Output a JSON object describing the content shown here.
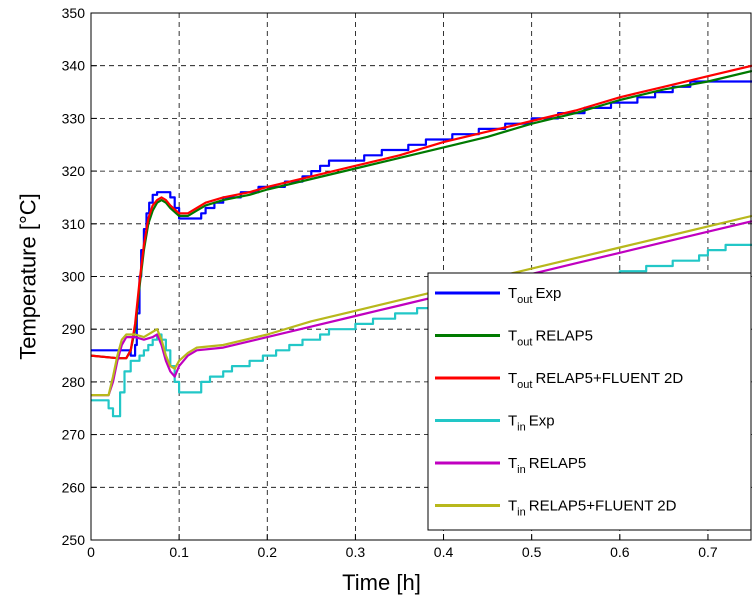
{
  "chart_data": {
    "type": "line",
    "xlabel": "Time [h]",
    "ylabel": "Temperature [°C]",
    "xlim": [
      0,
      0.75
    ],
    "ylim": [
      250,
      350
    ],
    "x_ticks": [
      0,
      0.1,
      0.2,
      0.3,
      0.4,
      0.5,
      0.6,
      0.7
    ],
    "x_tick_labels": [
      "0",
      "0.1",
      "0.2",
      "0.3",
      "0.4",
      "0.5",
      "0.6",
      "0.7"
    ],
    "y_ticks": [
      250,
      260,
      270,
      280,
      290,
      300,
      310,
      320,
      330,
      340,
      350
    ],
    "y_tick_labels": [
      "250",
      "260",
      "270",
      "280",
      "290",
      "300",
      "310",
      "320",
      "330",
      "340",
      "350"
    ],
    "grid": true,
    "legend_position": "bottom-right",
    "series": [
      {
        "key": "tout-exp",
        "name_main": "T",
        "name_sub": "out",
        "name_rest": "Exp",
        "color": "#0000ff",
        "step": true,
        "points": [
          [
            0,
            286
          ],
          [
            0.04,
            286
          ],
          [
            0.045,
            285
          ],
          [
            0.05,
            287
          ],
          [
            0.052,
            293
          ],
          [
            0.055,
            300
          ],
          [
            0.057,
            305
          ],
          [
            0.06,
            309
          ],
          [
            0.063,
            312
          ],
          [
            0.066,
            314
          ],
          [
            0.07,
            315.5
          ],
          [
            0.075,
            316
          ],
          [
            0.085,
            316
          ],
          [
            0.09,
            315
          ],
          [
            0.095,
            313
          ],
          [
            0.1,
            311
          ],
          [
            0.12,
            311
          ],
          [
            0.125,
            312
          ],
          [
            0.13,
            313
          ],
          [
            0.14,
            314
          ],
          [
            0.15,
            315
          ],
          [
            0.165,
            315
          ],
          [
            0.17,
            316
          ],
          [
            0.18,
            316
          ],
          [
            0.19,
            317
          ],
          [
            0.21,
            317
          ],
          [
            0.22,
            318
          ],
          [
            0.235,
            318
          ],
          [
            0.24,
            319
          ],
          [
            0.25,
            320
          ],
          [
            0.26,
            321
          ],
          [
            0.27,
            322
          ],
          [
            0.3,
            322
          ],
          [
            0.31,
            323
          ],
          [
            0.33,
            324
          ],
          [
            0.36,
            325
          ],
          [
            0.38,
            326
          ],
          [
            0.41,
            327
          ],
          [
            0.44,
            328
          ],
          [
            0.47,
            329
          ],
          [
            0.5,
            330
          ],
          [
            0.53,
            331
          ],
          [
            0.56,
            332
          ],
          [
            0.59,
            333
          ],
          [
            0.62,
            334
          ],
          [
            0.64,
            335
          ],
          [
            0.66,
            336
          ],
          [
            0.68,
            337
          ],
          [
            0.75,
            337
          ]
        ]
      },
      {
        "key": "tout-relap5",
        "name_main": "T",
        "name_sub": "out",
        "name_rest": "RELAP5",
        "color": "#007a00",
        "step": false,
        "points": [
          [
            0,
            285
          ],
          [
            0.03,
            284.5
          ],
          [
            0.04,
            284.5
          ],
          [
            0.045,
            286
          ],
          [
            0.05,
            290
          ],
          [
            0.055,
            298
          ],
          [
            0.06,
            305
          ],
          [
            0.065,
            310
          ],
          [
            0.07,
            312.5
          ],
          [
            0.075,
            314
          ],
          [
            0.08,
            314.5
          ],
          [
            0.085,
            314
          ],
          [
            0.09,
            313
          ],
          [
            0.1,
            311.5
          ],
          [
            0.11,
            311.5
          ],
          [
            0.12,
            312.5
          ],
          [
            0.13,
            313.5
          ],
          [
            0.15,
            314.5
          ],
          [
            0.18,
            315.5
          ],
          [
            0.2,
            316.5
          ],
          [
            0.25,
            318.5
          ],
          [
            0.3,
            320.5
          ],
          [
            0.35,
            322.5
          ],
          [
            0.4,
            324.5
          ],
          [
            0.45,
            326.5
          ],
          [
            0.5,
            329
          ],
          [
            0.55,
            331
          ],
          [
            0.6,
            333.5
          ],
          [
            0.65,
            335.5
          ],
          [
            0.7,
            337
          ],
          [
            0.75,
            339
          ]
        ]
      },
      {
        "key": "tout-relap5-fluent",
        "name_main": "T",
        "name_sub": "out",
        "name_rest": "RELAP5+FLUENT 2D",
        "color": "#ff0000",
        "step": false,
        "points": [
          [
            0,
            285
          ],
          [
            0.03,
            284.5
          ],
          [
            0.04,
            284.5
          ],
          [
            0.045,
            286
          ],
          [
            0.05,
            291
          ],
          [
            0.055,
            299
          ],
          [
            0.06,
            306
          ],
          [
            0.065,
            311
          ],
          [
            0.07,
            313.5
          ],
          [
            0.075,
            314.5
          ],
          [
            0.08,
            315
          ],
          [
            0.085,
            314.5
          ],
          [
            0.09,
            313.5
          ],
          [
            0.1,
            312
          ],
          [
            0.11,
            312
          ],
          [
            0.12,
            313
          ],
          [
            0.13,
            314
          ],
          [
            0.15,
            315
          ],
          [
            0.18,
            316
          ],
          [
            0.2,
            317
          ],
          [
            0.25,
            319
          ],
          [
            0.3,
            321
          ],
          [
            0.35,
            323
          ],
          [
            0.4,
            325.5
          ],
          [
            0.45,
            327.5
          ],
          [
            0.5,
            329.5
          ],
          [
            0.55,
            331.5
          ],
          [
            0.6,
            334
          ],
          [
            0.65,
            336
          ],
          [
            0.7,
            338
          ],
          [
            0.75,
            340
          ]
        ]
      },
      {
        "key": "tin-exp",
        "name_main": "T",
        "name_sub": "in",
        "name_rest": "Exp",
        "color": "#22c7c7",
        "step": true,
        "points": [
          [
            0,
            276.5
          ],
          [
            0.01,
            276.5
          ],
          [
            0.02,
            275
          ],
          [
            0.025,
            273.5
          ],
          [
            0.03,
            273.5
          ],
          [
            0.033,
            278
          ],
          [
            0.038,
            282
          ],
          [
            0.045,
            284
          ],
          [
            0.055,
            285
          ],
          [
            0.06,
            286
          ],
          [
            0.065,
            287
          ],
          [
            0.07,
            288
          ],
          [
            0.075,
            289
          ],
          [
            0.08,
            288
          ],
          [
            0.085,
            286
          ],
          [
            0.09,
            283
          ],
          [
            0.095,
            280
          ],
          [
            0.1,
            278
          ],
          [
            0.12,
            278
          ],
          [
            0.125,
            280
          ],
          [
            0.135,
            281
          ],
          [
            0.15,
            282
          ],
          [
            0.16,
            283
          ],
          [
            0.18,
            284
          ],
          [
            0.195,
            285
          ],
          [
            0.21,
            286
          ],
          [
            0.225,
            287
          ],
          [
            0.24,
            288
          ],
          [
            0.26,
            289
          ],
          [
            0.27,
            290
          ],
          [
            0.3,
            291
          ],
          [
            0.32,
            292
          ],
          [
            0.345,
            293
          ],
          [
            0.37,
            294
          ],
          [
            0.4,
            295
          ],
          [
            0.43,
            296
          ],
          [
            0.46,
            297
          ],
          [
            0.5,
            298
          ],
          [
            0.54,
            299
          ],
          [
            0.57,
            300
          ],
          [
            0.6,
            301
          ],
          [
            0.63,
            302
          ],
          [
            0.66,
            303
          ],
          [
            0.69,
            304
          ],
          [
            0.7,
            305
          ],
          [
            0.72,
            306
          ],
          [
            0.75,
            306
          ]
        ]
      },
      {
        "key": "tin-relap5",
        "name_main": "T",
        "name_sub": "in",
        "name_rest": "RELAP5",
        "color": "#c000c0",
        "step": false,
        "points": [
          [
            0,
            277.5
          ],
          [
            0.01,
            277.5
          ],
          [
            0.02,
            277.5
          ],
          [
            0.025,
            280
          ],
          [
            0.03,
            284
          ],
          [
            0.035,
            287
          ],
          [
            0.04,
            288.5
          ],
          [
            0.05,
            288.5
          ],
          [
            0.06,
            288
          ],
          [
            0.07,
            288.5
          ],
          [
            0.075,
            289
          ],
          [
            0.08,
            287
          ],
          [
            0.085,
            284
          ],
          [
            0.09,
            282
          ],
          [
            0.095,
            281
          ],
          [
            0.1,
            283
          ],
          [
            0.11,
            285
          ],
          [
            0.12,
            286
          ],
          [
            0.15,
            286.5
          ],
          [
            0.2,
            288.5
          ],
          [
            0.25,
            290.5
          ],
          [
            0.3,
            292.5
          ],
          [
            0.35,
            294.5
          ],
          [
            0.4,
            296.5
          ],
          [
            0.45,
            298.5
          ],
          [
            0.5,
            300.5
          ],
          [
            0.55,
            302.5
          ],
          [
            0.6,
            304.5
          ],
          [
            0.65,
            306.5
          ],
          [
            0.7,
            308.5
          ],
          [
            0.75,
            310.5
          ]
        ]
      },
      {
        "key": "tin-relap5-fluent",
        "name_main": "T",
        "name_sub": "in",
        "name_rest": "RELAP5+FLUENT 2D",
        "color": "#b8b81c",
        "step": false,
        "points": [
          [
            0,
            277.5
          ],
          [
            0.01,
            277.5
          ],
          [
            0.02,
            277.5
          ],
          [
            0.025,
            281
          ],
          [
            0.03,
            285
          ],
          [
            0.035,
            288
          ],
          [
            0.04,
            289
          ],
          [
            0.05,
            289
          ],
          [
            0.06,
            288.5
          ],
          [
            0.07,
            289.5
          ],
          [
            0.075,
            290
          ],
          [
            0.08,
            288
          ],
          [
            0.085,
            285
          ],
          [
            0.09,
            283
          ],
          [
            0.095,
            282.5
          ],
          [
            0.1,
            284
          ],
          [
            0.11,
            285.5
          ],
          [
            0.12,
            286.5
          ],
          [
            0.15,
            287
          ],
          [
            0.2,
            289
          ],
          [
            0.25,
            291.5
          ],
          [
            0.3,
            293.5
          ],
          [
            0.35,
            295.5
          ],
          [
            0.4,
            297.5
          ],
          [
            0.45,
            299.5
          ],
          [
            0.5,
            301.5
          ],
          [
            0.55,
            303.5
          ],
          [
            0.6,
            305.5
          ],
          [
            0.65,
            307.5
          ],
          [
            0.7,
            309.5
          ],
          [
            0.75,
            311.5
          ]
        ]
      }
    ]
  }
}
